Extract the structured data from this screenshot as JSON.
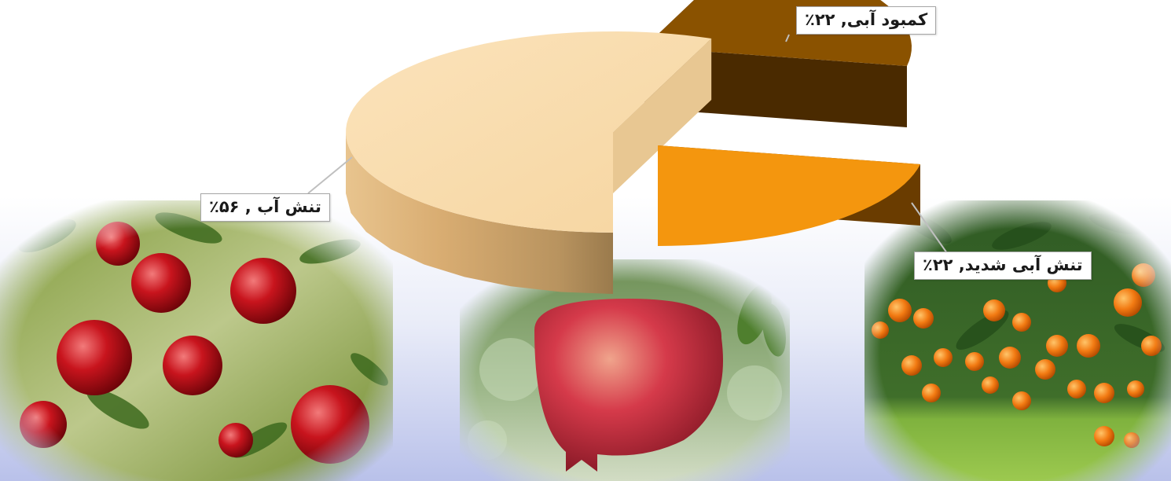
{
  "chart_data": {
    "type": "pie",
    "style": "3d-exploded",
    "categories": [
      "تنش آب",
      "کمبود آبی",
      "تنش آبی شدید"
    ],
    "values": [
      56,
      22,
      22
    ],
    "unit": "٪",
    "colors": [
      "#f8d9a8",
      "#8a5200",
      "#f4960e"
    ],
    "data_labels": [
      "تنش آب , ۵۶٪",
      "کمبود آبی, ۲۲٪",
      "تنش آبی شدید, ۲۲٪"
    ],
    "title": "",
    "legend": "none"
  },
  "background_images": [
    {
      "label": "apple-orchard",
      "depicts": "apples"
    },
    {
      "label": "pomegranate",
      "depicts": "pomegranate"
    },
    {
      "label": "orange-tree",
      "depicts": "oranges"
    }
  ]
}
